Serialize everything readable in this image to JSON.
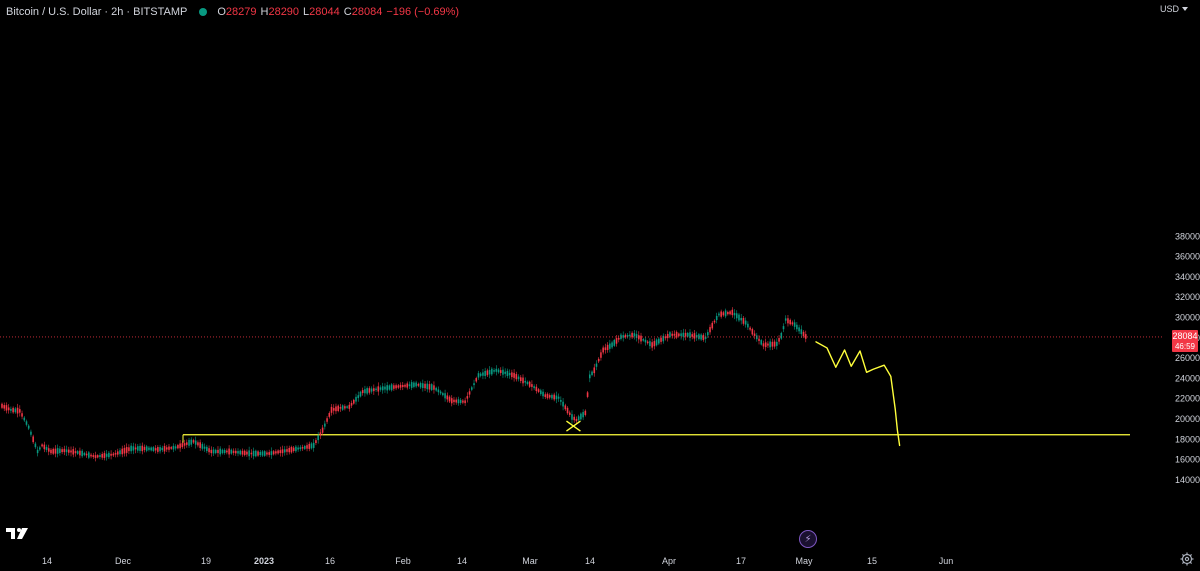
{
  "header": {
    "symbol_title": "Bitcoin / U.S. Dollar · 2h · BITSTAMP",
    "ohlc": [
      {
        "key": "O",
        "value": "28279"
      },
      {
        "key": "H",
        "value": "28290"
      },
      {
        "key": "L",
        "value": "28044"
      },
      {
        "key": "C",
        "value": "28084"
      }
    ],
    "change": "−196 (−0.69%)",
    "currency": "USD"
  },
  "price_label": {
    "price": "28084",
    "countdown": "46:59"
  },
  "colors": {
    "background": "#000000",
    "candle_up": "#089981",
    "candle_down": "#f23645",
    "drawing": "#ffff3b",
    "price_line": "#f23645"
  },
  "icons": {
    "logo": "tradingview-logo-icon",
    "flash": "lightning-icon",
    "settings": "gear-icon"
  },
  "chart_data": {
    "type": "line",
    "title": "Bitcoin / U.S. Dollar · 2h · BITSTAMP",
    "xlabel": "",
    "ylabel": "",
    "ylim": [
      14000,
      39500
    ],
    "x_tick_labels": [
      "14",
      "Dec",
      "19",
      "2023",
      "16",
      "Feb",
      "14",
      "Mar",
      "14",
      "Apr",
      "17",
      "May",
      "15",
      "Jun"
    ],
    "y_tick_labels": [
      "38000",
      "36000",
      "34000",
      "32000",
      "30000",
      "28000",
      "26000",
      "24000",
      "22000",
      "20000",
      "18000",
      "16000",
      "14000"
    ],
    "y_ticks": [
      38000,
      36000,
      34000,
      32000,
      30000,
      28000,
      26000,
      24000,
      22000,
      20000,
      18000,
      16000,
      14000
    ],
    "grid": false,
    "series": [
      {
        "x": [
          "2022-11-01",
          "2022-11-03",
          "2022-11-05",
          "2022-11-07",
          "2022-11-09",
          "2022-11-10",
          "2022-11-12",
          "2022-11-15",
          "2022-11-18",
          "2022-11-22",
          "2022-11-26",
          "2022-11-30",
          "2022-12-03",
          "2022-12-06",
          "2022-12-10",
          "2022-12-14",
          "2022-12-16",
          "2022-12-18",
          "2022-12-22",
          "2022-12-27",
          "2022-12-31",
          "2023-01-04",
          "2023-01-08",
          "2023-01-10",
          "2023-01-12",
          "2023-01-14",
          "2023-01-16",
          "2023-01-18",
          "2023-01-21",
          "2023-01-25",
          "2023-01-29",
          "2023-02-02",
          "2023-02-06",
          "2023-02-10",
          "2023-02-13",
          "2023-02-16",
          "2023-02-20",
          "2023-02-24",
          "2023-02-28",
          "2023-03-03",
          "2023-03-06",
          "2023-03-09",
          "2023-03-10",
          "2023-03-12",
          "2023-03-13",
          "2023-03-14",
          "2023-03-16",
          "2023-03-18",
          "2023-03-20",
          "2023-03-23",
          "2023-03-27",
          "2023-03-31",
          "2023-04-04",
          "2023-04-08",
          "2023-04-10",
          "2023-04-11",
          "2023-04-14",
          "2023-04-17",
          "2023-04-19",
          "2023-04-21",
          "2023-04-24",
          "2023-04-25",
          "2023-04-26",
          "2023-04-28",
          "2023-05-01"
        ],
        "values": [
          21300,
          20900,
          20800,
          19200,
          16800,
          17400,
          16800,
          16900,
          16700,
          16300,
          16500,
          17100,
          17100,
          17000,
          17200,
          17800,
          17300,
          16800,
          16800,
          16600,
          16600,
          16900,
          17200,
          17400,
          18900,
          20900,
          21100,
          21200,
          22700,
          23000,
          23200,
          23400,
          23100,
          21800,
          21700,
          24300,
          24800,
          24300,
          23300,
          22300,
          22100,
          20200,
          19900,
          20600,
          24200,
          24800,
          26800,
          27300,
          28100,
          28300,
          27300,
          28300,
          28300,
          28000,
          29600,
          30300,
          30500,
          29500,
          28300,
          27300,
          27400,
          28200,
          29800,
          29300,
          27900
        ]
      }
    ],
    "annotations": {
      "support_level": 18450,
      "forecast_path": [
        [
          0,
          27600
        ],
        [
          5,
          27000
        ],
        [
          9,
          25100
        ],
        [
          13,
          26800
        ],
        [
          16,
          25200
        ],
        [
          20,
          26700
        ],
        [
          23,
          24600
        ],
        [
          26,
          24900
        ],
        [
          31,
          25300
        ],
        [
          34,
          24200
        ],
        [
          36,
          21000
        ],
        [
          37,
          18900
        ],
        [
          38,
          17400
        ]
      ],
      "x_marker": {
        "date": "2023-03-10",
        "value": 19300
      }
    }
  }
}
